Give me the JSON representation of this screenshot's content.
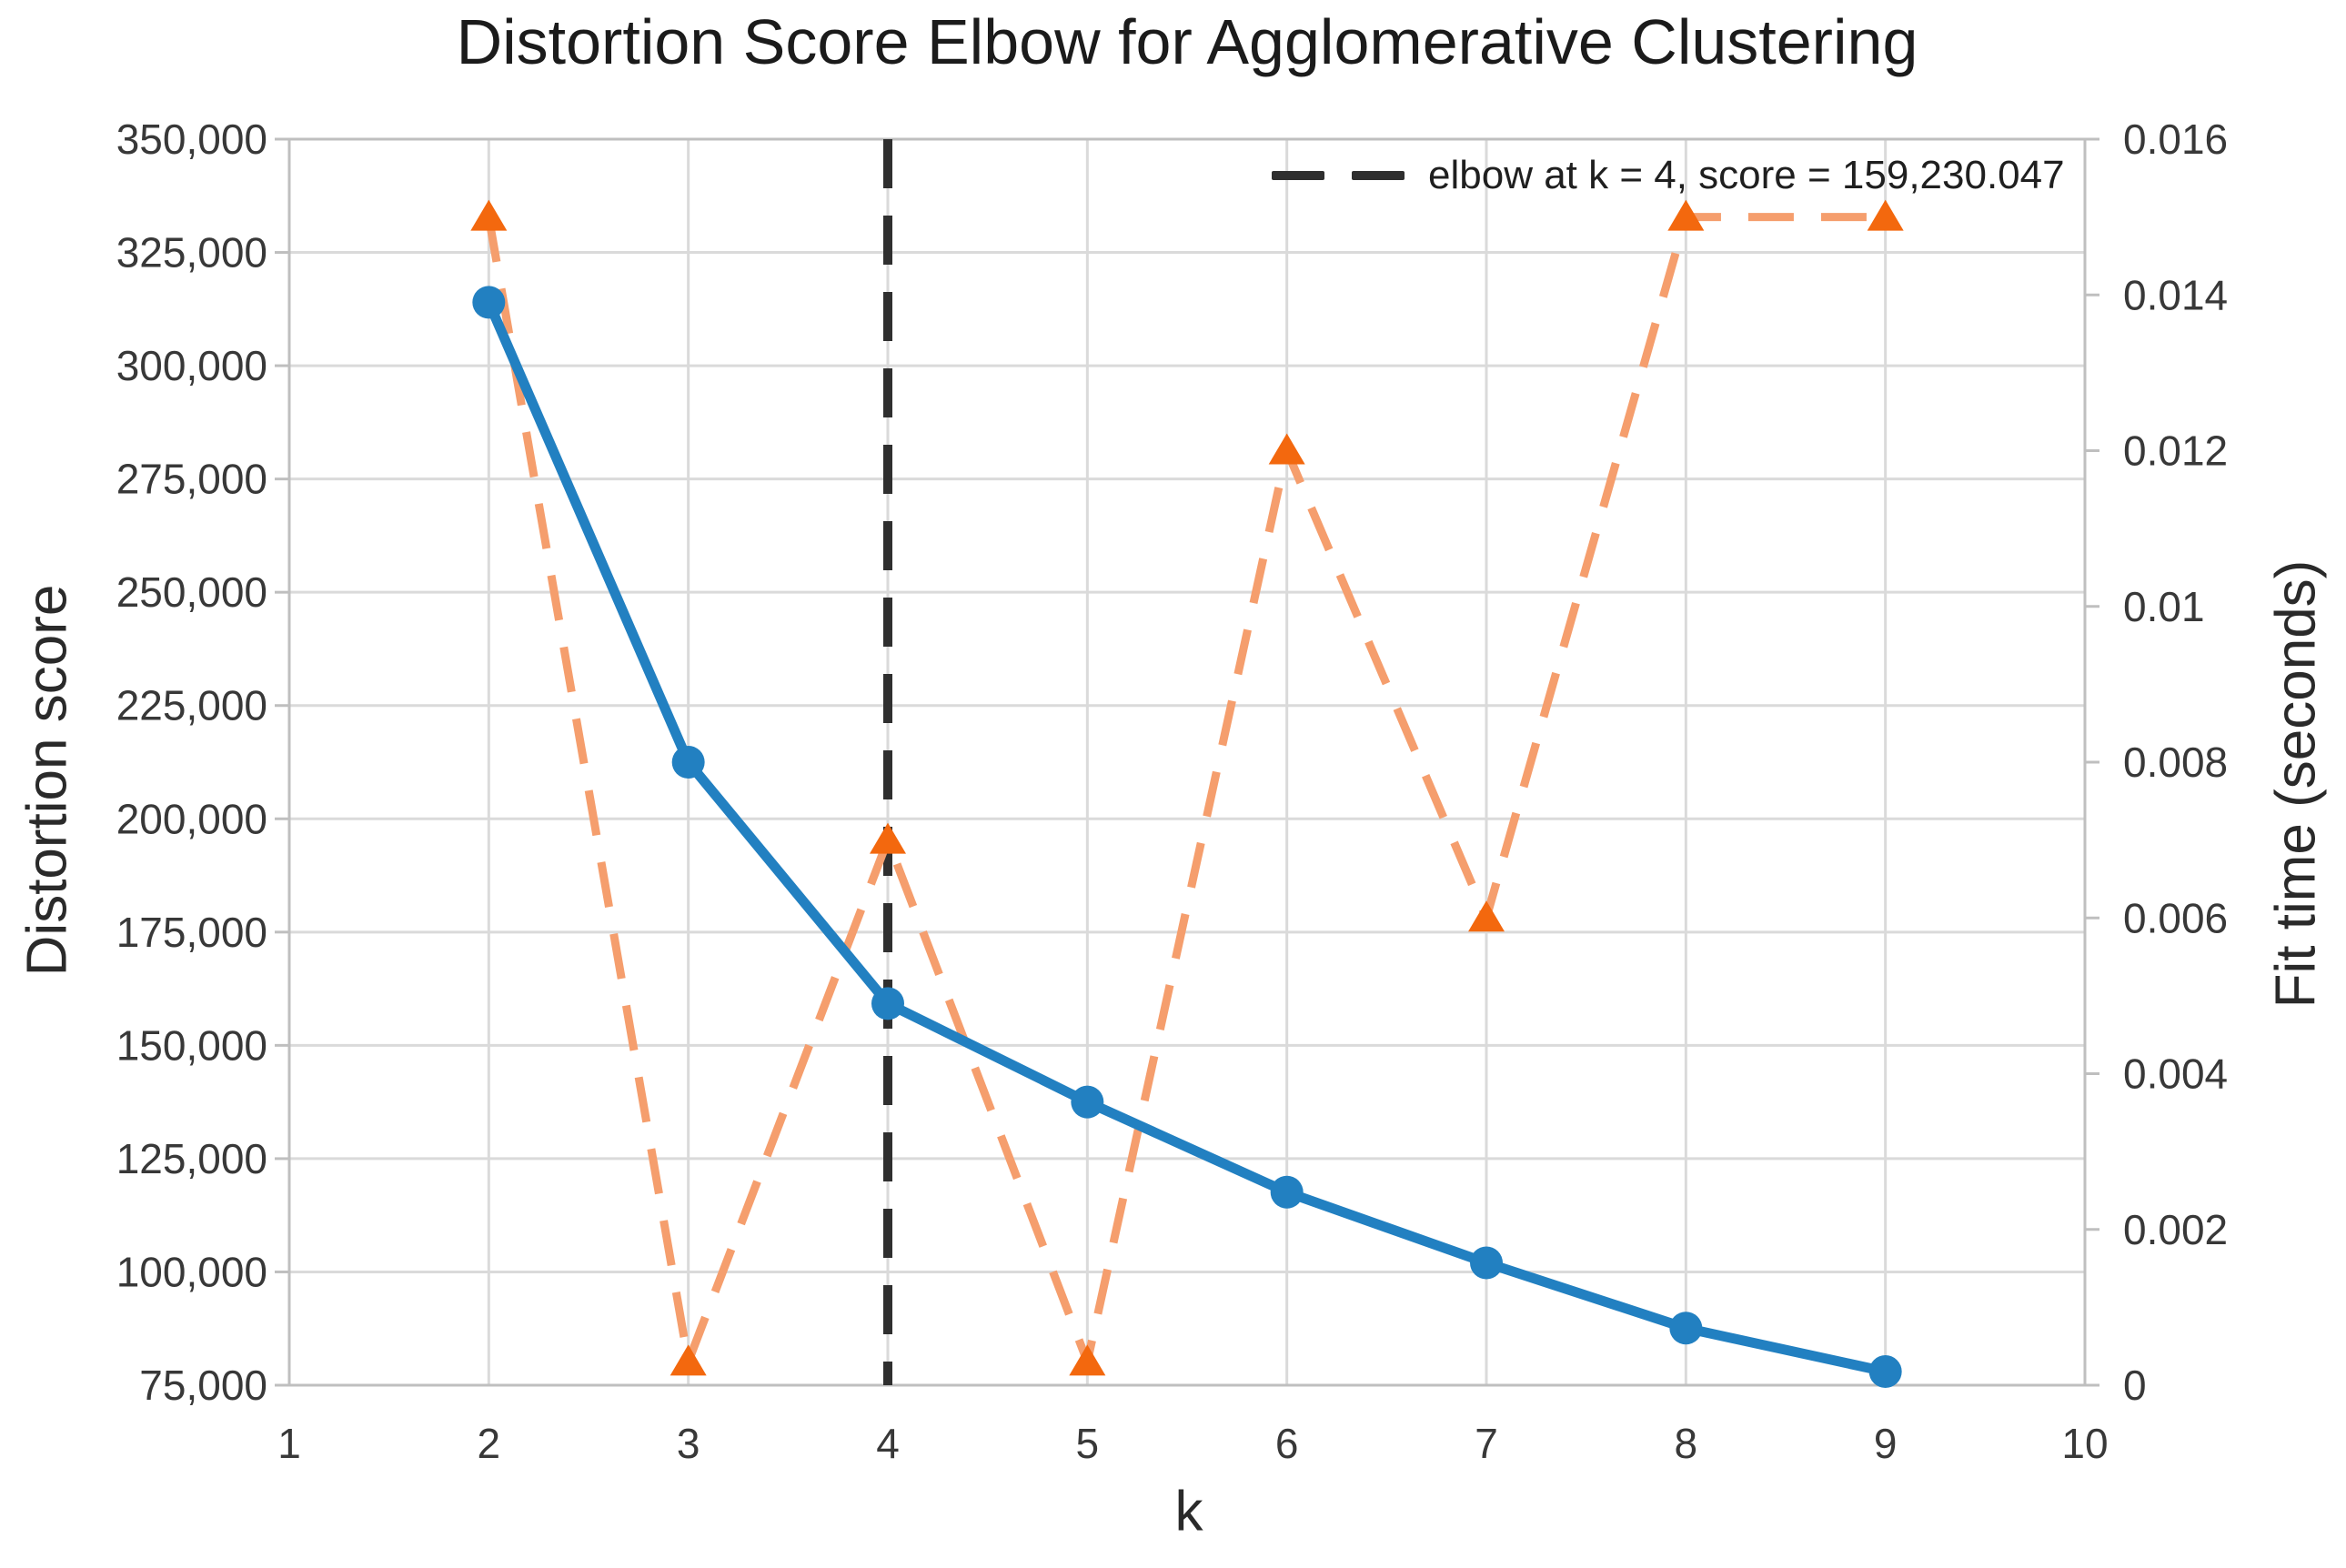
{
  "title": "Distortion Score Elbow for Agglomerative Clustering",
  "legend": {
    "label": "elbow at k = 4, score = 159,230.047"
  },
  "axes": {
    "x": {
      "label": "k"
    },
    "y_left": {
      "label": "Distortion score"
    },
    "y_right": {
      "label": "Fit time (seconds)"
    }
  },
  "colors": {
    "distortion_line": "#2280c1",
    "fit_time_line": "#f59e6d",
    "fit_time_marker": "#f3680e",
    "elbow_line": "#2f2f2f",
    "grid": "#dadada",
    "border": "#bfbfbf",
    "tick_text": "#383838"
  },
  "chart_data": {
    "type": "line",
    "title": "Distortion Score Elbow for Agglomerative Clustering",
    "xlabel": "k",
    "x_ticks": [
      1,
      2,
      3,
      4,
      5,
      6,
      7,
      8,
      9,
      10
    ],
    "x": [
      2,
      3,
      4,
      5,
      6,
      7,
      8,
      9
    ],
    "series": [
      {
        "name": "distortion score",
        "axis": "left",
        "marker": "circle",
        "line_style": "solid",
        "color": "#2280c1",
        "values": [
          314000,
          212500,
          159230.047,
          137500,
          117600,
          102000,
          87600,
          78000
        ]
      },
      {
        "name": "fit time",
        "axis": "right",
        "marker": "triangle",
        "line_style": "dashed",
        "color": "#f3680e",
        "line_color": "#f59e6d",
        "values": [
          0.015,
          0.0003,
          0.007,
          0.0003,
          0.012,
          0.006,
          0.015,
          0.015
        ]
      }
    ],
    "elbow": {
      "k": 4,
      "score": 159230.047,
      "legend_label": "elbow at k = 4, score = 159,230.047"
    },
    "left_axis": {
      "label": "Distortion score",
      "min": 75000,
      "max": 350000,
      "tick_values": [
        75000,
        100000,
        125000,
        150000,
        175000,
        200000,
        225000,
        250000,
        275000,
        300000,
        325000,
        350000
      ],
      "tick_labels": [
        "75,000",
        "100,000",
        "125,000",
        "150,000",
        "175,000",
        "200,000",
        "225,000",
        "250,000",
        "275,000",
        "300,000",
        "325,000",
        "350,000"
      ]
    },
    "right_axis": {
      "label": "Fit time (seconds)",
      "min": 0,
      "max": 0.016,
      "tick_values": [
        0,
        0.002,
        0.004,
        0.006,
        0.008,
        0.01,
        0.012,
        0.014,
        0.016
      ],
      "tick_labels": [
        "0",
        "0.002",
        "0.004",
        "0.006",
        "0.008",
        "0.01",
        "0.012",
        "0.014",
        "0.016"
      ]
    },
    "grid": true,
    "legend_position": "upper right"
  }
}
